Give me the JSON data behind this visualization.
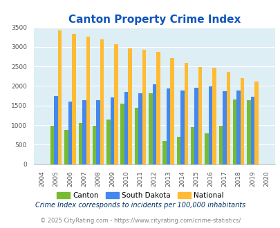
{
  "title": "Canton Property Crime Index",
  "years": [
    "2004",
    "2005",
    "2006",
    "2007",
    "2008",
    "2009",
    "2010",
    "2011",
    "2012",
    "2013",
    "2014",
    "2015",
    "2016",
    "2017",
    "2018",
    "2019",
    "2020"
  ],
  "canton": [
    0,
    980,
    870,
    1060,
    990,
    1150,
    1550,
    1440,
    1820,
    600,
    700,
    940,
    790,
    990,
    1660,
    1640,
    0
  ],
  "south_dakota": [
    0,
    1750,
    1610,
    1640,
    1640,
    1700,
    1850,
    1820,
    2050,
    1940,
    1880,
    1950,
    1990,
    1870,
    1880,
    1730,
    0
  ],
  "national": [
    0,
    3420,
    3340,
    3260,
    3200,
    3060,
    2960,
    2920,
    2870,
    2720,
    2590,
    2490,
    2460,
    2360,
    2200,
    2110,
    0
  ],
  "canton_color": "#77bb33",
  "sd_color": "#4488ee",
  "national_color": "#ffbb33",
  "bg_color": "#ddeef5",
  "ylim": [
    0,
    3500
  ],
  "yticks": [
    0,
    500,
    1000,
    1500,
    2000,
    2500,
    3000,
    3500
  ],
  "title_color": "#1155bb",
  "subtitle": "Crime Index corresponds to incidents per 100,000 inhabitants",
  "footer": "© 2025 CityRating.com - https://www.cityrating.com/crime-statistics/",
  "legend_labels": [
    "Canton",
    "South Dakota",
    "National"
  ],
  "subtitle_color": "#003366",
  "footer_color": "#888888"
}
